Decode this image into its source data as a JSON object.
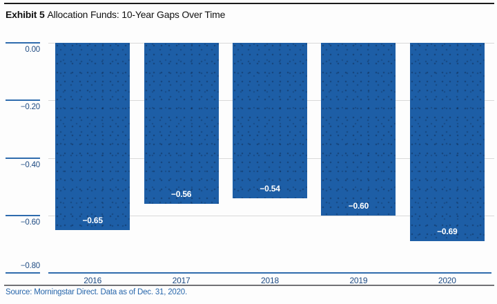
{
  "header": {
    "exhibit_label": "Exhibit 5",
    "title": "Allocation Funds: 10-Year Gaps Over Time"
  },
  "footer": {
    "source": "Source: Morningstar Direct. Data as of Dec. 31, 2020."
  },
  "colors": {
    "bar_blue": "#1d5ea6",
    "axis_blue": "#2e6bad",
    "tick_label_navy": "#1d4a82",
    "year_label_navy": "#1d4a82",
    "grid_gray": "#d9d9d9",
    "source_blue": "#2766ab",
    "rule_black": "#1a1a1a",
    "rule_gray": "#717174",
    "bar_value_white": "#ffffff"
  },
  "chart_data": {
    "type": "bar",
    "title": "Allocation Funds: 10-Year Gaps Over Time",
    "categories": [
      "2016",
      "2017",
      "2018",
      "2019",
      "2020"
    ],
    "values": [
      -0.65,
      -0.56,
      -0.54,
      -0.6,
      -0.69
    ],
    "bar_labels": [
      "−0.65",
      "−0.56",
      "−0.54",
      "−0.60",
      "−0.69"
    ],
    "y_ticks": [
      0.0,
      -0.2,
      -0.4,
      -0.6,
      -0.8
    ],
    "y_tick_labels": [
      "0.00",
      "−0.20",
      "−0.40",
      "−0.60",
      "−0.80"
    ],
    "xlabel": "",
    "ylabel": "",
    "ylim": [
      -0.8,
      0.0
    ],
    "grid": true,
    "legend": false,
    "orientation": "vertical",
    "value_label_position": "inside-bottom"
  }
}
